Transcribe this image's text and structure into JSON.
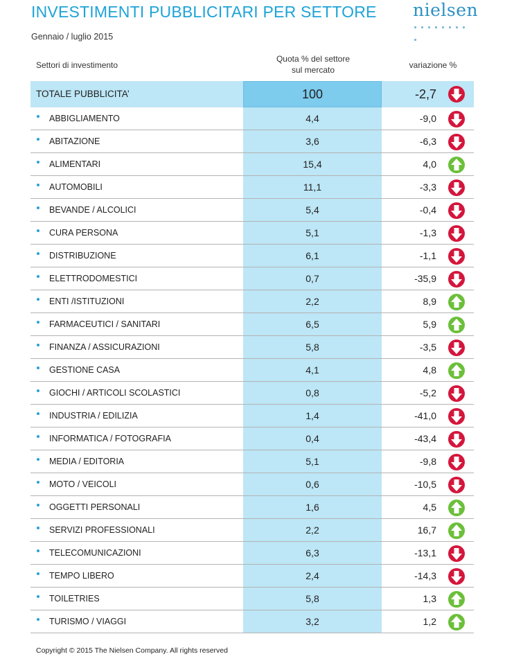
{
  "header": {
    "title": "INVESTIMENTI PUBBLICITARI PER SETTORE",
    "subtitle": "Gennaio / luglio 2015",
    "logo_text": "nielsen"
  },
  "columns": {
    "sector": "Settori di investimento",
    "share_line1": "Quota % del settore",
    "share_line2": "sul mercato",
    "variation": "variazione %"
  },
  "colors": {
    "title": "#1ea3d8",
    "band": "#bde6f6",
    "total_share": "#7dcbed",
    "down_arrow": "#d4163c",
    "up_arrow": "#6cbf3a"
  },
  "icons": {
    "down": "arrow-down-circle-icon",
    "up": "arrow-up-circle-icon"
  },
  "footer": {
    "copyright": "Copyright © 2015 The Nielsen Company. All rights reserved"
  },
  "chart_data": {
    "type": "table",
    "title": "INVESTIMENTI PUBBLICITARI PER SETTORE",
    "subtitle": "Gennaio / luglio 2015",
    "columns": [
      "Settori di investimento",
      "Quota % del settore sul mercato",
      "variazione %"
    ],
    "total": {
      "sector": "TOTALE PUBBLICITA’",
      "share": "100",
      "variation": "-2,7",
      "trend": "down"
    },
    "rows": [
      {
        "sector": "ABBIGLIAMENTO",
        "share": "4,4",
        "variation": "-9,0",
        "trend": "down"
      },
      {
        "sector": "ABITAZIONE",
        "share": "3,6",
        "variation": "-6,3",
        "trend": "down"
      },
      {
        "sector": "ALIMENTARI",
        "share": "15,4",
        "variation": "4,0",
        "trend": "up"
      },
      {
        "sector": "AUTOMOBILI",
        "share": "11,1",
        "variation": "-3,3",
        "trend": "down"
      },
      {
        "sector": "BEVANDE / ALCOLICI",
        "share": "5,4",
        "variation": "-0,4",
        "trend": "down"
      },
      {
        "sector": "CURA PERSONA",
        "share": "5,1",
        "variation": "-1,3",
        "trend": "down"
      },
      {
        "sector": "DISTRIBUZIONE",
        "share": "6,1",
        "variation": "-1,1",
        "trend": "down"
      },
      {
        "sector": "ELETTRODOMESTICI",
        "share": "0,7",
        "variation": "-35,9",
        "trend": "down"
      },
      {
        "sector": "ENTI /ISTITUZIONI",
        "share": "2,2",
        "variation": "8,9",
        "trend": "up"
      },
      {
        "sector": "FARMACEUTICI / SANITARI",
        "share": "6,5",
        "variation": "5,9",
        "trend": "up"
      },
      {
        "sector": "FINANZA / ASSICURAZIONI",
        "share": "5,8",
        "variation": "-3,5",
        "trend": "down"
      },
      {
        "sector": "GESTIONE CASA",
        "share": "4,1",
        "variation": "4,8",
        "trend": "up"
      },
      {
        "sector": "GIOCHI / ARTICOLI SCOLASTICI",
        "share": "0,8",
        "variation": "-5,2",
        "trend": "down"
      },
      {
        "sector": "INDUSTRIA / EDILIZIA",
        "share": "1,4",
        "variation": "-41,0",
        "trend": "down"
      },
      {
        "sector": "INFORMATICA / FOTOGRAFIA",
        "share": "0,4",
        "variation": "-43,4",
        "trend": "down"
      },
      {
        "sector": "MEDIA / EDITORIA",
        "share": "5,1",
        "variation": "-9,8",
        "trend": "down"
      },
      {
        "sector": "MOTO / VEICOLI",
        "share": "0,6",
        "variation": "-10,5",
        "trend": "down"
      },
      {
        "sector": "OGGETTI PERSONALI",
        "share": "1,6",
        "variation": "4,5",
        "trend": "up"
      },
      {
        "sector": "SERVIZI PROFESSIONALI",
        "share": "2,2",
        "variation": "16,7",
        "trend": "up"
      },
      {
        "sector": "TELECOMUNICAZIONI",
        "share": "6,3",
        "variation": "-13,1",
        "trend": "down"
      },
      {
        "sector": "TEMPO LIBERO",
        "share": "2,4",
        "variation": "-14,3",
        "trend": "down"
      },
      {
        "sector": "TOILETRIES",
        "share": "5,8",
        "variation": "1,3",
        "trend": "up"
      },
      {
        "sector": "TURISMO / VIAGGI",
        "share": "3,2",
        "variation": "1,2",
        "trend": "up"
      }
    ]
  }
}
